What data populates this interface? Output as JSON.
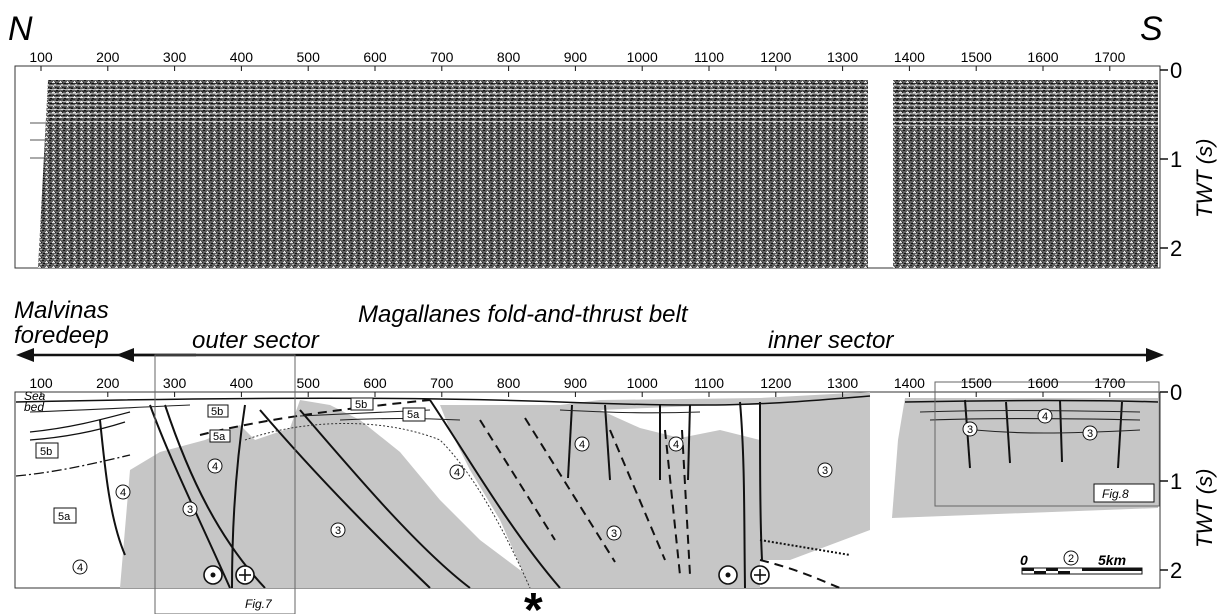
{
  "orientation": {
    "left": "N",
    "right": "S"
  },
  "top_panel": {
    "x_ticks": [
      "100",
      "200",
      "300",
      "400",
      "500",
      "600",
      "700",
      "800",
      "900",
      "1000",
      "1100",
      "1200",
      "1300",
      "1400",
      "1500",
      "1600",
      "1700"
    ],
    "y_ticks": [
      "0",
      "1",
      "2"
    ],
    "y_axis_label": "TWT (s)"
  },
  "bottom_panel": {
    "x_ticks": [
      "100",
      "200",
      "300",
      "400",
      "500",
      "600",
      "700",
      "800",
      "900",
      "1000",
      "1100",
      "1200",
      "1300",
      "1400",
      "1500",
      "1600",
      "1700"
    ],
    "y_ticks": [
      "0",
      "1",
      "2"
    ],
    "y_axis_label": "TWT (s)",
    "header": {
      "foredeep_line1": "Malvinas",
      "foredeep_line2": "foredeep",
      "belt_title": "Magallanes fold-and-thrust belt",
      "outer_sector": "outer sector",
      "inner_sector": "inner sector"
    },
    "seabed_line1": "Sea",
    "seabed_line2": "bed",
    "unit_labels": {
      "u5b": "5b",
      "u5a": "5a",
      "u4": "4",
      "u3": "3",
      "u2": "2"
    },
    "figure_refs": {
      "fig7": "Fig.7",
      "fig8": "Fig.8"
    },
    "scale_bar": {
      "start": "0",
      "end": "5km"
    },
    "star": "*"
  },
  "colors": {
    "fill_gray": "#c6c6c6",
    "ink": "#111111"
  }
}
